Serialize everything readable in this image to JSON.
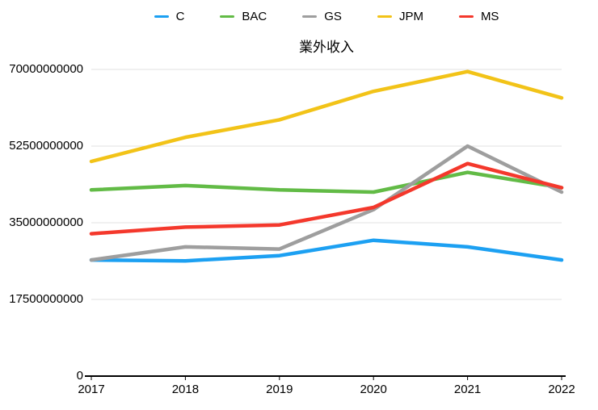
{
  "chart_data": {
    "type": "line",
    "title": "業外收入",
    "x_labels": [
      "2017",
      "2018",
      "2019",
      "2020",
      "2021",
      "2022"
    ],
    "ylim": [
      0,
      70000000000
    ],
    "y_ticks": [
      0,
      17500000000,
      35000000000,
      52500000000,
      70000000000
    ],
    "y_tick_labels": [
      "0",
      "17500000000",
      "35000000000",
      "52500000000",
      "70000000000"
    ],
    "grid": true,
    "legend_position": "top",
    "axis_color": "#000000",
    "grid_color": "#e0e0e0",
    "series": [
      {
        "name": "C",
        "color": "#1ca0f2",
        "values": [
          26500000000,
          26300000000,
          27500000000,
          31000000000,
          29500000000,
          26500000000
        ]
      },
      {
        "name": "BAC",
        "color": "#62bb46",
        "values": [
          42500000000,
          43500000000,
          42500000000,
          42000000000,
          46500000000,
          43000000000
        ]
      },
      {
        "name": "GS",
        "color": "#9e9e9e",
        "values": [
          26500000000,
          29500000000,
          29000000000,
          38000000000,
          52500000000,
          42000000000
        ]
      },
      {
        "name": "JPM",
        "color": "#f2c318",
        "values": [
          49000000000,
          54500000000,
          58500000000,
          65000000000,
          69500000000,
          63500000000
        ]
      },
      {
        "name": "MS",
        "color": "#f4382c",
        "values": [
          32500000000,
          34000000000,
          34500000000,
          38500000000,
          48500000000,
          43000000000
        ]
      }
    ]
  }
}
